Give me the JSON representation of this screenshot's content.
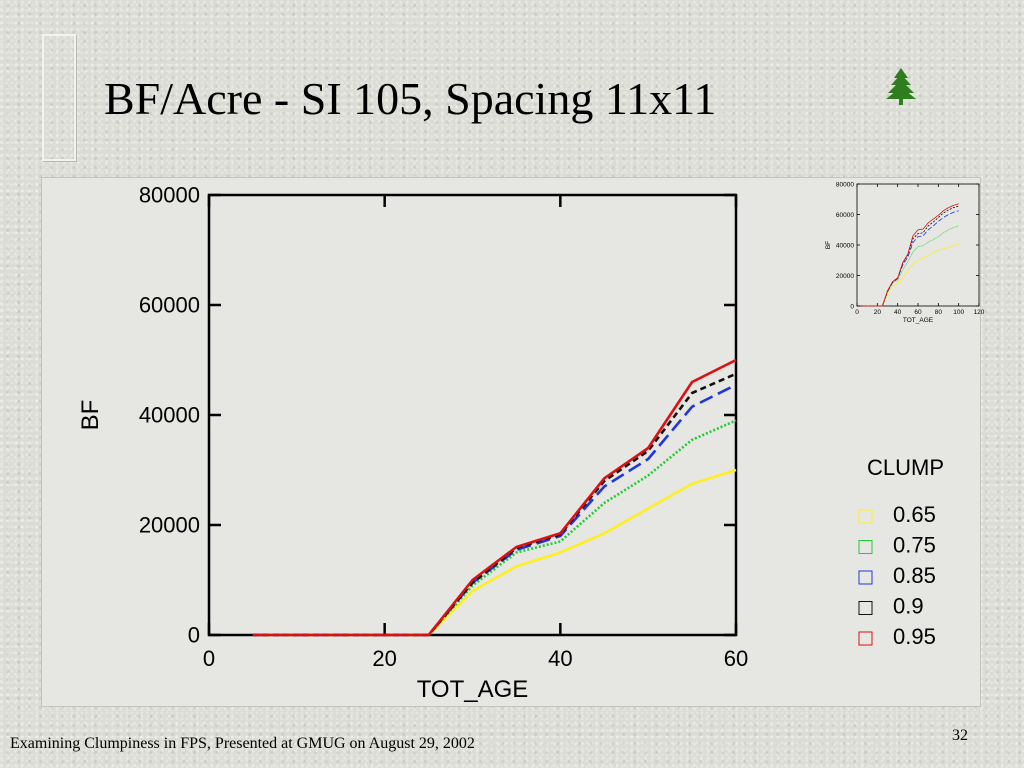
{
  "slide": {
    "title": "BF/Acre - SI 105, Spacing 11x11",
    "footer": "Examining Clumpiness in FPS, Presented at GMUG on August 29, 2002",
    "page_number": "32"
  },
  "icons": {
    "logo": "pine-tree-icon",
    "logo_color": "#2e7d1f"
  },
  "chart_data": [
    {
      "type": "line",
      "title": "",
      "xlabel": "TOT_AGE",
      "ylabel": "BF",
      "xlim": [
        0,
        60
      ],
      "ylim": [
        0,
        80000
      ],
      "xticks": [
        0,
        20,
        40,
        60
      ],
      "yticks": [
        0,
        20000,
        40000,
        60000,
        80000
      ],
      "grid": false,
      "legend": {
        "title": "CLUMP",
        "position": "right"
      },
      "x": [
        5,
        10,
        15,
        20,
        25,
        30,
        35,
        40,
        45,
        50,
        55,
        60
      ],
      "series": [
        {
          "name": "0.65",
          "color": "#ffee22",
          "dash": "solid",
          "values": [
            0,
            0,
            0,
            0,
            0,
            8000,
            12500,
            15000,
            18500,
            23000,
            27500,
            30000
          ]
        },
        {
          "name": "0.75",
          "color": "#22cc33",
          "dash": "dotted",
          "values": [
            0,
            0,
            0,
            0,
            0,
            9000,
            15000,
            17000,
            24000,
            29000,
            35500,
            39000
          ]
        },
        {
          "name": "0.85",
          "color": "#1f36d9",
          "dash": "longdash",
          "values": [
            0,
            0,
            0,
            0,
            0,
            9500,
            15500,
            18000,
            27000,
            32000,
            41500,
            45500
          ]
        },
        {
          "name": "0.9",
          "color": "#111111",
          "dash": "shortdash",
          "values": [
            0,
            0,
            0,
            0,
            0,
            9500,
            15800,
            18300,
            28000,
            33500,
            44000,
            47500
          ]
        },
        {
          "name": "0.95",
          "color": "#dd1111",
          "dash": "solid",
          "values": [
            0,
            0,
            0,
            0,
            0,
            10000,
            16000,
            18500,
            28500,
            34000,
            46000,
            50000
          ]
        }
      ]
    },
    {
      "type": "line",
      "title": "",
      "xlabel": "TOT_AGE",
      "ylabel": "BF",
      "xlim": [
        0,
        120
      ],
      "ylim": [
        0,
        80000
      ],
      "xticks": [
        0,
        20,
        40,
        60,
        80,
        100,
        120
      ],
      "yticks": [
        0,
        20000,
        40000,
        60000,
        80000
      ],
      "grid": false,
      "legend": {
        "title": "",
        "position": "none"
      },
      "x": [
        5,
        10,
        15,
        20,
        25,
        30,
        35,
        40,
        45,
        50,
        55,
        60,
        65,
        70,
        75,
        80,
        85,
        90,
        95,
        100
      ],
      "series": [
        {
          "name": "0.65",
          "color": "#ffee22",
          "dash": "solid",
          "values": [
            0,
            0,
            0,
            0,
            0,
            8000,
            12500,
            15000,
            18500,
            23000,
            27500,
            30000,
            31500,
            33000,
            35000,
            36500,
            37500,
            38500,
            39500,
            40500
          ]
        },
        {
          "name": "0.75",
          "color": "#22cc33",
          "dash": "dotted",
          "values": [
            0,
            0,
            0,
            0,
            0,
            9000,
            15000,
            17000,
            24000,
            29000,
            35500,
            39000,
            39500,
            42000,
            43500,
            45500,
            48000,
            50000,
            51500,
            52500
          ]
        },
        {
          "name": "0.85",
          "color": "#1f36d9",
          "dash": "longdash",
          "values": [
            0,
            0,
            0,
            0,
            0,
            9500,
            15500,
            18000,
            27000,
            32000,
            41500,
            45500,
            46000,
            50000,
            52500,
            55500,
            58000,
            60000,
            61500,
            62500
          ]
        },
        {
          "name": "0.9",
          "color": "#111111",
          "dash": "shortdash",
          "values": [
            0,
            0,
            0,
            0,
            0,
            9500,
            15800,
            18300,
            28000,
            33500,
            44000,
            47500,
            48000,
            52500,
            55000,
            58000,
            61000,
            63000,
            64500,
            65500
          ]
        },
        {
          "name": "0.95",
          "color": "#dd1111",
          "dash": "solid",
          "values": [
            0,
            0,
            0,
            0,
            0,
            10000,
            16000,
            18500,
            28500,
            34000,
            46000,
            50000,
            50500,
            54500,
            57000,
            59500,
            62500,
            64500,
            66000,
            67000
          ]
        }
      ]
    }
  ]
}
